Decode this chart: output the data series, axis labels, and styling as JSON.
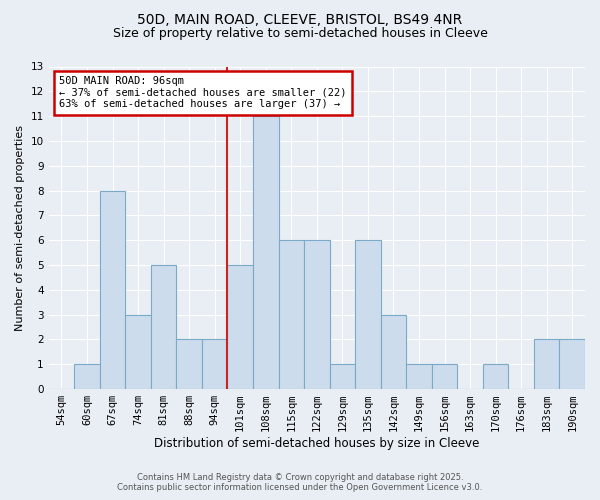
{
  "title1": "50D, MAIN ROAD, CLEEVE, BRISTOL, BS49 4NR",
  "title2": "Size of property relative to semi-detached houses in Cleeve",
  "xlabel": "Distribution of semi-detached houses by size in Cleeve",
  "ylabel": "Number of semi-detached properties",
  "categories": [
    "54sqm",
    "60sqm",
    "67sqm",
    "74sqm",
    "81sqm",
    "88sqm",
    "94sqm",
    "101sqm",
    "108sqm",
    "115sqm",
    "122sqm",
    "129sqm",
    "135sqm",
    "142sqm",
    "149sqm",
    "156sqm",
    "163sqm",
    "170sqm",
    "176sqm",
    "183sqm",
    "190sqm"
  ],
  "values": [
    0,
    1,
    8,
    3,
    5,
    2,
    2,
    5,
    11,
    6,
    6,
    1,
    6,
    3,
    1,
    1,
    0,
    1,
    0,
    2,
    2
  ],
  "bar_color": "#ccdcec",
  "bar_edge_color": "#7aaac8",
  "red_line_index": 6,
  "ylim": [
    0,
    13
  ],
  "yticks": [
    0,
    1,
    2,
    3,
    4,
    5,
    6,
    7,
    8,
    9,
    10,
    11,
    12,
    13
  ],
  "annotation_title": "50D MAIN ROAD: 96sqm",
  "annotation_line1": "← 37% of semi-detached houses are smaller (22)",
  "annotation_line2": "63% of semi-detached houses are larger (37) →",
  "annotation_box_facecolor": "#ffffff",
  "annotation_box_edgecolor": "#cc0000",
  "footer1": "Contains HM Land Registry data © Crown copyright and database right 2025.",
  "footer2": "Contains public sector information licensed under the Open Government Licence v3.0.",
  "background_color": "#e8eef4",
  "grid_color": "#ffffff",
  "title_fontsize": 10,
  "subtitle_fontsize": 9,
  "annotation_fontsize": 7.5,
  "xlabel_fontsize": 8.5,
  "ylabel_fontsize": 8,
  "tick_fontsize": 7.5
}
